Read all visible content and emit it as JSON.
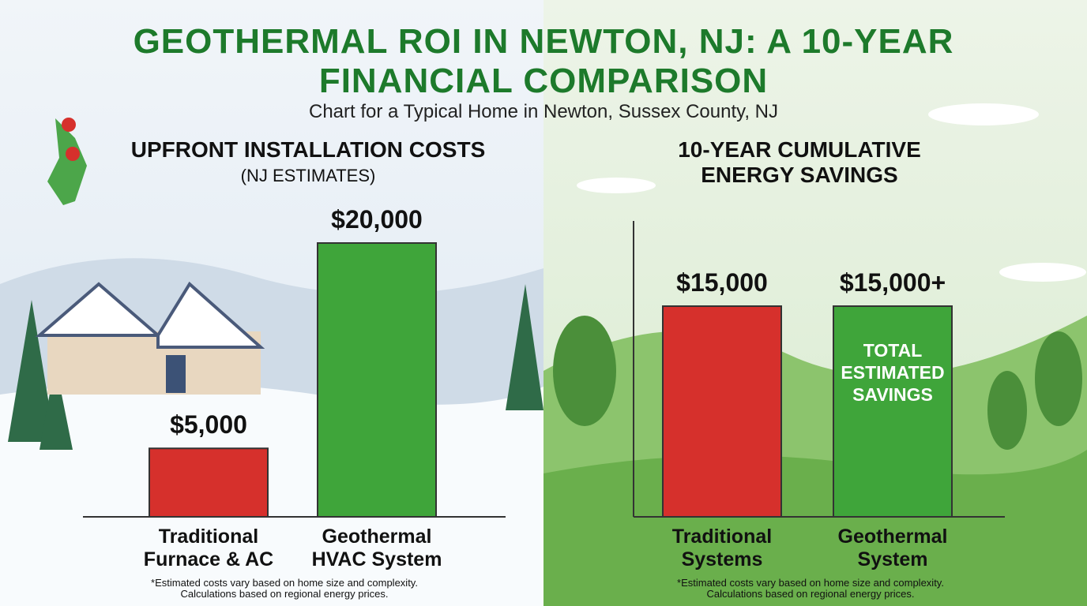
{
  "header": {
    "title": "GEOTHERMAL ROI IN NEWTON, NJ: A 10-YEAR FINANCIAL COMPARISON",
    "subtitle": "Chart for a Typical Home in Newton, Sussex County, NJ"
  },
  "chart_data": [
    {
      "type": "bar",
      "title": "UPFRONT INSTALLATION COSTS",
      "subtitle": "(NJ ESTIMATES)",
      "categories": [
        "Traditional Furnace & AC",
        "Geothermal HVAC System"
      ],
      "values": [
        5000,
        20000
      ],
      "value_labels": [
        "$5,000",
        "$20,000"
      ],
      "colors": [
        "#d6302c",
        "#3fa53a"
      ],
      "note": "*Estimated costs vary based on home size and complexity. Calculations based on regional energy prices."
    },
    {
      "type": "bar",
      "title": "10-YEAR CUMULATIVE ENERGY SAVINGS",
      "categories": [
        "Traditional Systems",
        "Geothermal System"
      ],
      "values": [
        15000,
        15000
      ],
      "value_labels": [
        "$15,000",
        "$15,000+"
      ],
      "colors": [
        "#d6302c",
        "#3fa53a"
      ],
      "annotation": "TOTAL ESTIMATED SAVINGS",
      "note": "*Estimated costs vary based on home size and complexity. Calculations based on regional energy prices."
    }
  ]
}
